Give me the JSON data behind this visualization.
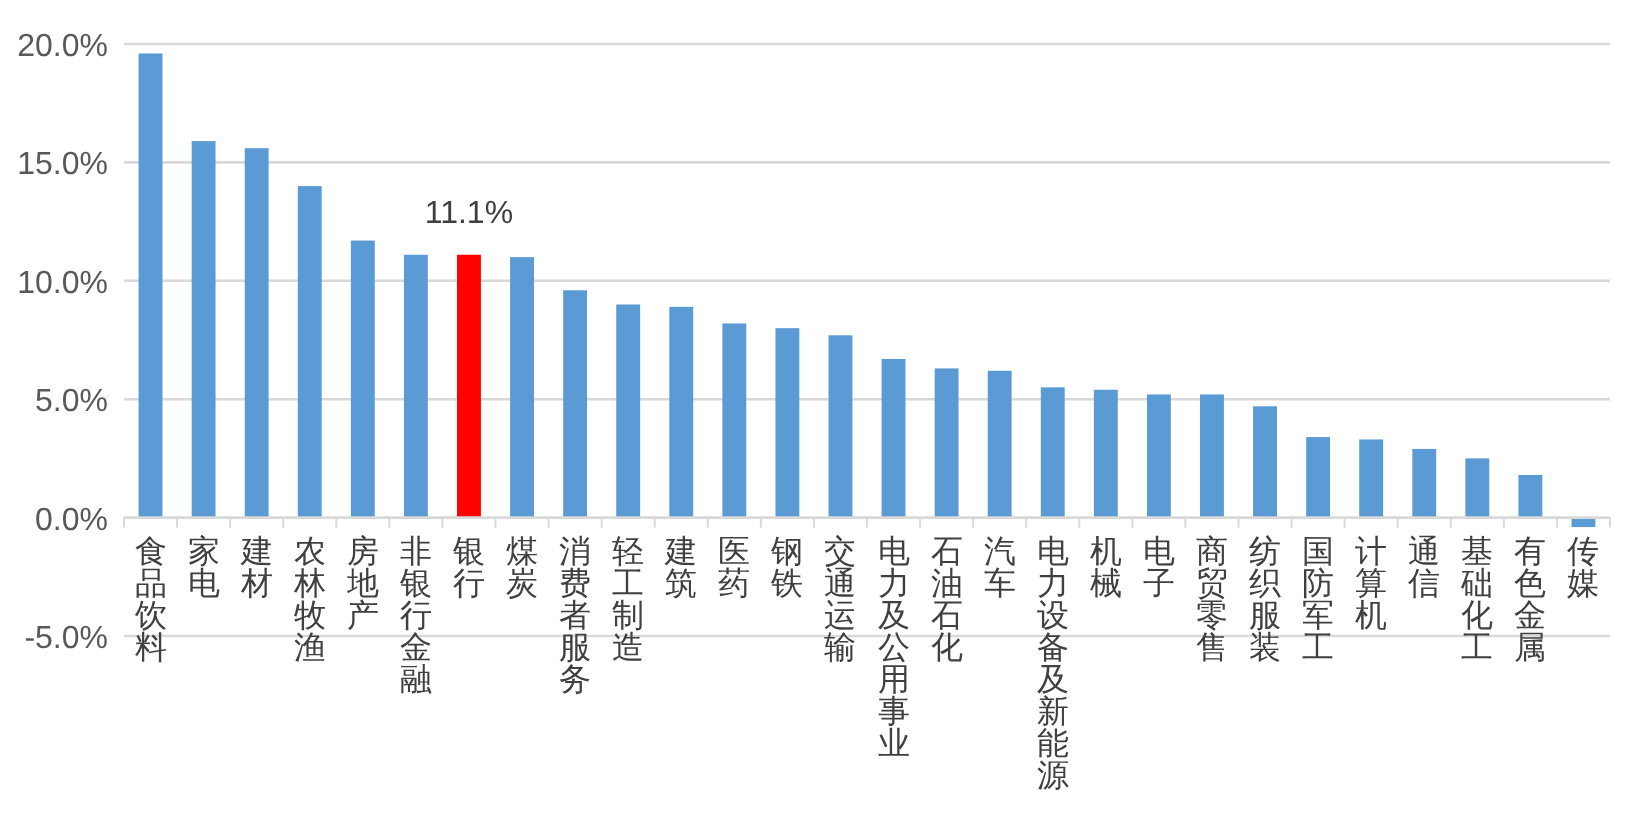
{
  "chart_data": {
    "type": "bar",
    "categories": [
      "食品饮料",
      "家电",
      "建材",
      "农林牧渔",
      "房地产",
      "非银行金融",
      "银行",
      "煤炭",
      "消费者服务",
      "轻工制造",
      "建筑",
      "医药",
      "钢铁",
      "交通运输",
      "电力及公用事业",
      "石油石化",
      "汽车",
      "电力设备及新能源",
      "机械",
      "电子",
      "商贸零售",
      "纺织服装",
      "国防军工",
      "计算机",
      "通信",
      "基础化工",
      "有色金属",
      "传媒"
    ],
    "values": [
      19.6,
      15.9,
      15.6,
      14.0,
      11.7,
      11.1,
      11.1,
      11.0,
      9.6,
      9.0,
      8.9,
      8.2,
      8.0,
      7.7,
      6.7,
      6.3,
      6.2,
      5.5,
      5.4,
      5.2,
      5.2,
      4.7,
      3.4,
      3.3,
      2.9,
      2.5,
      1.8,
      -0.4
    ],
    "colors": [
      "#5b9bd5",
      "#5b9bd5",
      "#5b9bd5",
      "#5b9bd5",
      "#5b9bd5",
      "#5b9bd5",
      "#ff0000",
      "#5b9bd5",
      "#5b9bd5",
      "#5b9bd5",
      "#5b9bd5",
      "#5b9bd5",
      "#5b9bd5",
      "#5b9bd5",
      "#5b9bd5",
      "#5b9bd5",
      "#5b9bd5",
      "#5b9bd5",
      "#5b9bd5",
      "#5b9bd5",
      "#5b9bd5",
      "#5b9bd5",
      "#5b9bd5",
      "#5b9bd5",
      "#5b9bd5",
      "#5b9bd5",
      "#5b9bd5",
      "#5b9bd5"
    ],
    "value_labels": [
      null,
      null,
      null,
      null,
      null,
      null,
      "11.1%",
      null,
      null,
      null,
      null,
      null,
      null,
      null,
      null,
      null,
      null,
      null,
      null,
      null,
      null,
      null,
      null,
      null,
      null,
      null,
      null,
      null
    ],
    "ylim": [
      -5,
      20
    ],
    "yticks": [
      {
        "value": -5,
        "label": "-5.0%"
      },
      {
        "value": 0,
        "label": "0.0%"
      },
      {
        "value": 5,
        "label": "5.0%"
      },
      {
        "value": 10,
        "label": "10.0%"
      },
      {
        "value": 15,
        "label": "15.0%"
      },
      {
        "value": 20,
        "label": "20.0%"
      }
    ],
    "grid": "y"
  }
}
